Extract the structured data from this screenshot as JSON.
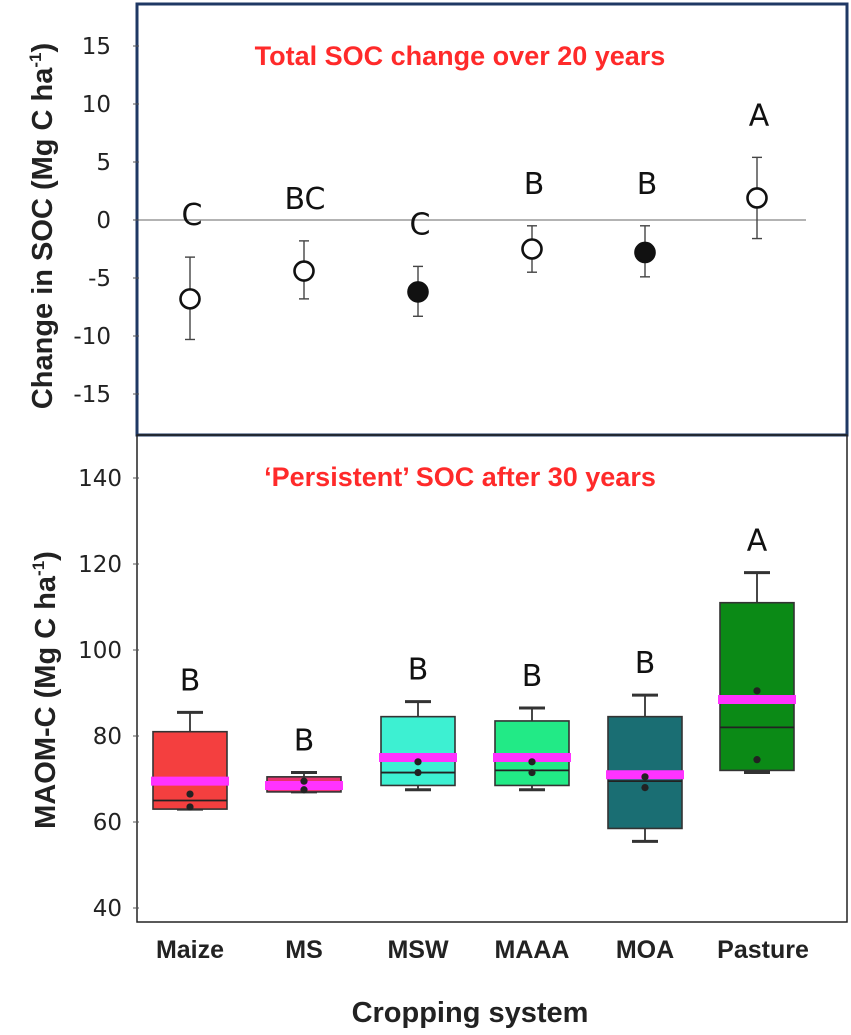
{
  "colors": {
    "frame": "#1f3864",
    "title": "#ff2a2a",
    "median_highlight": "#ff33ff"
  },
  "chart_data": [
    {
      "type": "scatter",
      "title": "Total SOC change over 20 years",
      "ylabel": "Change in SOC (Mg C ha",
      "ylabel_sup": "-1",
      "ylabel_tail": ")",
      "ylim": [
        -18,
        18
      ],
      "yticks": [
        15,
        10,
        5,
        0,
        -5,
        -10,
        -15
      ],
      "categories": [
        "Maize",
        "MS",
        "MSW",
        "MAAA",
        "MOA",
        "Pasture"
      ],
      "points": [
        {
          "category": "Maize",
          "mean": -6.8,
          "err_low": -10.3,
          "err_high": -3.2,
          "filled": false,
          "letter": "C"
        },
        {
          "category": "MS",
          "mean": -4.4,
          "err_low": -6.8,
          "err_high": -1.8,
          "filled": false,
          "letter": "BC"
        },
        {
          "category": "MSW",
          "mean": -6.2,
          "err_low": -8.3,
          "err_high": -4.0,
          "filled": true,
          "letter": "C"
        },
        {
          "category": "MAAA",
          "mean": -2.5,
          "err_low": -4.5,
          "err_high": -0.5,
          "filled": false,
          "letter": "B"
        },
        {
          "category": "MOA",
          "mean": -2.8,
          "err_low": -4.9,
          "err_high": -0.5,
          "filled": true,
          "letter": "B"
        },
        {
          "category": "Pasture",
          "mean": 1.9,
          "err_low": -1.6,
          "err_high": 5.4,
          "filled": false,
          "letter": "A"
        }
      ],
      "reference_line": 0
    },
    {
      "type": "box",
      "title": "‘Persistent’ SOC after 30 years",
      "ylabel": "MAOM-C (Mg C ha",
      "ylabel_sup": "-1",
      "ylabel_tail": ")",
      "xlabel": "Cropping system",
      "ylim": [
        40,
        150
      ],
      "yticks": [
        140,
        120,
        100,
        80,
        60,
        40
      ],
      "categories": [
        "Maize",
        "MS",
        "MSW",
        "MAAA",
        "MOA",
        "Pasture"
      ],
      "boxes": [
        {
          "category": "Maize",
          "whisker_low": 63,
          "q1": 63,
          "median": 65,
          "q3": 81,
          "whisker_high": 85.5,
          "mean": 69.5,
          "dots": [
            63.5,
            66.5
          ],
          "color": "#f43f3f",
          "letter": "B"
        },
        {
          "category": "MS",
          "whisker_low": 67,
          "q1": 67,
          "median": 69,
          "q3": 70.5,
          "whisker_high": 71.5,
          "mean": 68.5,
          "dots": [
            67.5,
            69.5
          ],
          "color": "#e8326e",
          "letter": "B"
        },
        {
          "category": "MSW",
          "whisker_low": 67.5,
          "q1": 68.5,
          "median": 71.5,
          "q3": 84.5,
          "whisker_high": 88,
          "mean": 75,
          "dots": [
            71.5,
            74
          ],
          "color": "#3df0d2",
          "letter": "B"
        },
        {
          "category": "MAAA",
          "whisker_low": 67.5,
          "q1": 68.5,
          "median": 72,
          "q3": 83.5,
          "whisker_high": 86.5,
          "mean": 75,
          "dots": [
            71.5,
            74
          ],
          "color": "#22ea86",
          "letter": "B"
        },
        {
          "category": "MOA",
          "whisker_low": 55.5,
          "q1": 58.5,
          "median": 69.5,
          "q3": 84.5,
          "whisker_high": 89.5,
          "mean": 71,
          "dots": [
            68,
            70.5
          ],
          "color": "#1a6e73",
          "letter": "B"
        },
        {
          "category": "Pasture",
          "whisker_low": 71.5,
          "q1": 72,
          "median": 82,
          "q3": 111,
          "whisker_high": 118,
          "mean": 88.5,
          "dots": [
            74.5,
            90.5
          ],
          "color": "#0b8a16",
          "letter": "A"
        }
      ]
    }
  ]
}
